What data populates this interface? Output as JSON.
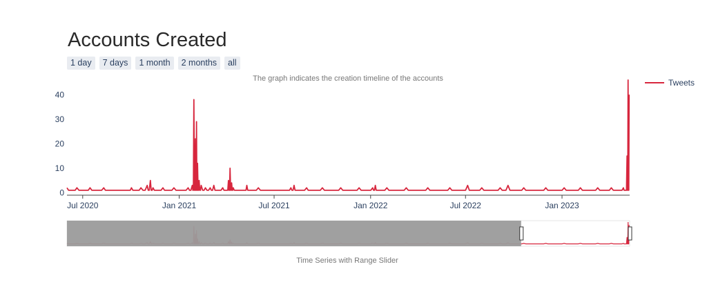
{
  "title": "Accounts Created",
  "subtitle": "The graph indicates the creation timeline of the accounts",
  "range_selector": {
    "buttons": [
      "1 day",
      "7 days",
      "1 month",
      "2 months",
      "all"
    ]
  },
  "range_slider": {
    "title": "Time Series with Range Slider"
  },
  "colors": {
    "series": "#d7263d",
    "axis_text": "#2a3f5f",
    "slider_mask": "#9b9b9b"
  },
  "chart_data": {
    "type": "line",
    "title": "Accounts Created",
    "subtitle": "The graph indicates the creation timeline of the accounts",
    "xlim": [
      "2020-06-01",
      "2023-05-10"
    ],
    "ylim": [
      -1,
      46
    ],
    "y_ticks": [
      0,
      10,
      20,
      30,
      40
    ],
    "x_ticks": [
      {
        "date": "2020-07-01",
        "label": "Jul 2020"
      },
      {
        "date": "2021-01-01",
        "label": "Jan 2021"
      },
      {
        "date": "2021-07-01",
        "label": "Jul 2021"
      },
      {
        "date": "2022-01-01",
        "label": "Jan 2022"
      },
      {
        "date": "2022-07-01",
        "label": "Jul 2022"
      },
      {
        "date": "2023-01-01",
        "label": "Jan 2023"
      }
    ],
    "grid": false,
    "legend": "top-right",
    "series": [
      {
        "name": "Tweets",
        "color": "#d7263d",
        "baseline": 1,
        "points": [
          [
            "2020-06-01",
            2
          ],
          [
            "2020-06-10",
            1
          ],
          [
            "2020-06-20",
            2
          ],
          [
            "2020-07-05",
            1
          ],
          [
            "2020-07-15",
            2
          ],
          [
            "2020-07-25",
            1
          ],
          [
            "2020-08-10",
            2
          ],
          [
            "2020-08-20",
            1
          ],
          [
            "2020-09-25",
            1
          ],
          [
            "2020-10-02",
            2
          ],
          [
            "2020-10-10",
            1
          ],
          [
            "2020-10-20",
            2
          ],
          [
            "2020-11-01",
            3
          ],
          [
            "2020-11-07",
            5
          ],
          [
            "2020-11-12",
            2
          ],
          [
            "2020-11-20",
            1
          ],
          [
            "2020-12-01",
            2
          ],
          [
            "2020-12-10",
            1
          ],
          [
            "2020-12-22",
            2
          ],
          [
            "2021-01-05",
            1
          ],
          [
            "2021-01-18",
            2
          ],
          [
            "2021-01-26",
            3
          ],
          [
            "2021-01-29",
            38
          ],
          [
            "2021-02-01",
            22
          ],
          [
            "2021-02-03",
            29
          ],
          [
            "2021-02-05",
            12
          ],
          [
            "2021-02-08",
            5
          ],
          [
            "2021-02-12",
            3
          ],
          [
            "2021-02-20",
            2
          ],
          [
            "2021-03-01",
            2
          ],
          [
            "2021-03-08",
            3
          ],
          [
            "2021-03-15",
            1
          ],
          [
            "2021-03-25",
            2
          ],
          [
            "2021-04-01",
            1
          ],
          [
            "2021-04-05",
            5
          ],
          [
            "2021-04-08",
            10
          ],
          [
            "2021-04-11",
            4
          ],
          [
            "2021-04-14",
            2
          ],
          [
            "2021-04-20",
            1
          ],
          [
            "2021-05-05",
            1
          ],
          [
            "2021-05-10",
            3
          ],
          [
            "2021-05-15",
            1
          ],
          [
            "2021-06-01",
            2
          ],
          [
            "2021-06-15",
            1
          ],
          [
            "2021-07-25",
            1
          ],
          [
            "2021-08-02",
            2
          ],
          [
            "2021-08-08",
            3
          ],
          [
            "2021-08-14",
            1
          ],
          [
            "2021-09-01",
            2
          ],
          [
            "2021-09-10",
            1
          ],
          [
            "2021-10-01",
            2
          ],
          [
            "2021-10-15",
            1
          ],
          [
            "2021-11-05",
            2
          ],
          [
            "2021-11-20",
            1
          ],
          [
            "2021-12-10",
            2
          ],
          [
            "2021-12-25",
            1
          ],
          [
            "2022-01-05",
            2
          ],
          [
            "2022-01-10",
            3
          ],
          [
            "2022-01-15",
            1
          ],
          [
            "2022-02-01",
            2
          ],
          [
            "2022-02-20",
            1
          ],
          [
            "2022-03-10",
            2
          ],
          [
            "2022-04-01",
            1
          ],
          [
            "2022-04-20",
            2
          ],
          [
            "2022-05-10",
            1
          ],
          [
            "2022-06-01",
            2
          ],
          [
            "2022-06-20",
            1
          ],
          [
            "2022-07-05",
            3
          ],
          [
            "2022-07-15",
            1
          ],
          [
            "2022-08-01",
            2
          ],
          [
            "2022-08-20",
            1
          ],
          [
            "2022-09-05",
            2
          ],
          [
            "2022-09-20",
            3
          ],
          [
            "2022-10-01",
            1
          ],
          [
            "2022-10-20",
            2
          ],
          [
            "2022-11-10",
            1
          ],
          [
            "2022-12-01",
            2
          ],
          [
            "2022-12-15",
            1
          ],
          [
            "2023-01-05",
            2
          ],
          [
            "2023-01-20",
            1
          ],
          [
            "2023-02-05",
            2
          ],
          [
            "2023-02-20",
            1
          ],
          [
            "2023-03-10",
            2
          ],
          [
            "2023-03-25",
            1
          ],
          [
            "2023-04-05",
            2
          ],
          [
            "2023-04-20",
            1
          ],
          [
            "2023-04-28",
            2
          ],
          [
            "2023-05-02",
            1
          ],
          [
            "2023-05-05",
            15
          ],
          [
            "2023-05-07",
            46
          ],
          [
            "2023-05-09",
            40
          ]
        ]
      }
    ],
    "range_slider_window": [
      "2022-10-15",
      "2023-05-10"
    ]
  }
}
